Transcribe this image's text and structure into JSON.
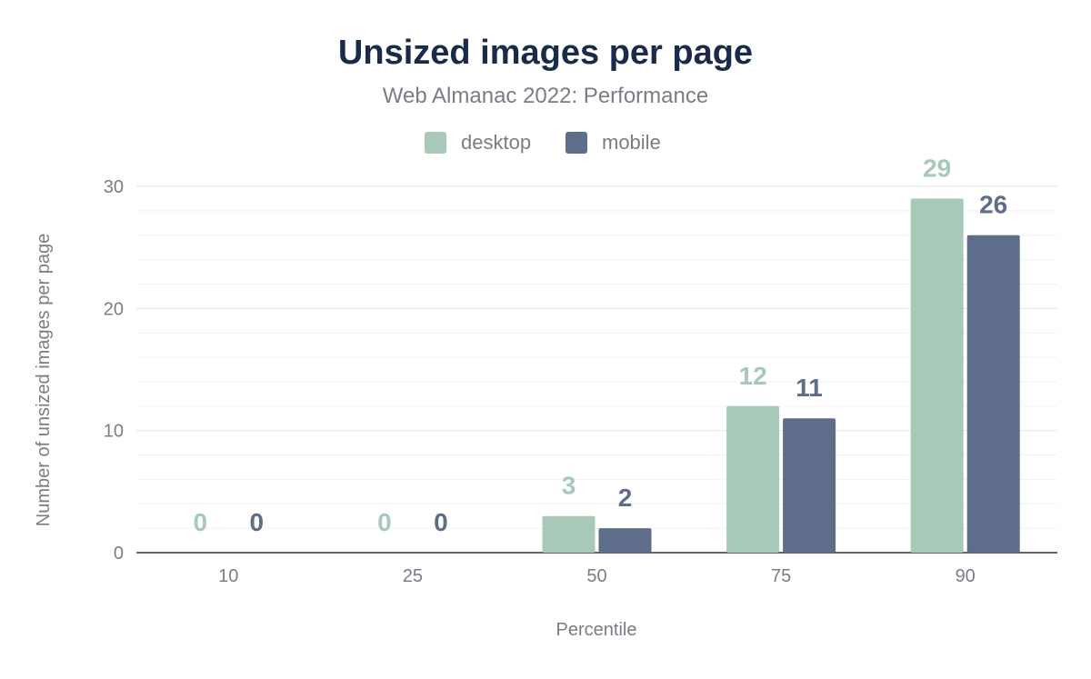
{
  "chart_data": {
    "type": "bar",
    "title": "Unsized images per page",
    "subtitle": "Web Almanac 2022: Performance",
    "xlabel": "Percentile",
    "ylabel": "Number of unsized images per page",
    "categories": [
      "10",
      "25",
      "50",
      "75",
      "90"
    ],
    "series": [
      {
        "name": "desktop",
        "values": [
          0,
          0,
          3,
          12,
          29
        ],
        "color": "#a8c9b8"
      },
      {
        "name": "mobile",
        "values": [
          0,
          0,
          2,
          11,
          26
        ],
        "color": "#5e6d89"
      }
    ],
    "ylim": [
      0,
      30
    ],
    "yticks": [
      "0",
      "10",
      "20",
      "30"
    ],
    "grid": true,
    "legend": "top-center",
    "title_color": "#1a2b4a"
  }
}
